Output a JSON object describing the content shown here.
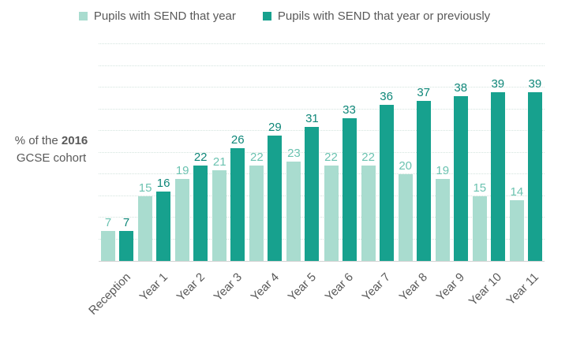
{
  "legend": {
    "items": [
      {
        "label": "Pupils with SEND that year",
        "color": "#a9dccf"
      },
      {
        "label": "Pupils with SEND that year or previously",
        "color": "#17a18e"
      }
    ]
  },
  "y_axis_label": {
    "line1_prefix": "% of the ",
    "line1_bold": "2016",
    "line2": "GCSE cohort"
  },
  "chart_data": {
    "type": "bar",
    "title": "",
    "xlabel": "",
    "ylabel": "% of the 2016 GCSE cohort",
    "ylim": [
      0,
      50
    ],
    "gridline_step": 5,
    "grid": true,
    "legend_position": "top",
    "data_labels": true,
    "categories": [
      "Reception",
      "Year 1",
      "Year 2",
      "Year 3",
      "Year 4",
      "Year 5",
      "Year 6",
      "Year 7",
      "Year 8",
      "Year 9",
      "Year 10",
      "Year 11"
    ],
    "series": [
      {
        "name": "Pupils with SEND that year",
        "color": "#a9dccf",
        "label_color": "#6cc3b1",
        "values": [
          7,
          15,
          19,
          21,
          22,
          23,
          22,
          22,
          20,
          19,
          15,
          14
        ]
      },
      {
        "name": "Pupils with SEND that year or previously",
        "color": "#17a18e",
        "label_color": "#0f8779",
        "values": [
          7,
          16,
          22,
          26,
          29,
          31,
          33,
          36,
          37,
          38,
          39,
          39
        ]
      }
    ]
  },
  "style": {
    "gridline_color": "#d4e4de",
    "baseline_color": "#d2d2d2",
    "axis_text_color": "#595959"
  }
}
